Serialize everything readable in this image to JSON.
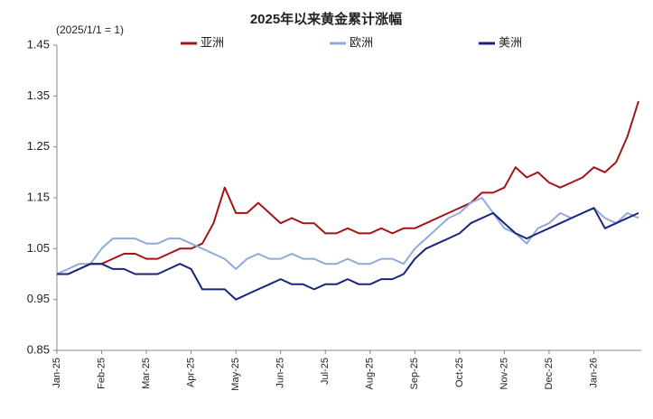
{
  "chart_data": {
    "type": "line",
    "title": "2025年以来黄金累计涨幅",
    "annotation": "(2025/1/1 = 1)",
    "categories": [
      "Jan-25",
      null,
      null,
      null,
      "Feb-25",
      null,
      null,
      null,
      "Mar-25",
      null,
      null,
      null,
      "Apr-25",
      null,
      null,
      null,
      "May-25",
      null,
      null,
      null,
      "Jun-25",
      null,
      null,
      null,
      "Jul-25",
      null,
      null,
      null,
      "Aug-25",
      null,
      null,
      null,
      "Sep-25",
      null,
      null,
      null,
      "Oct-25",
      null,
      null,
      null,
      "Nov-25",
      null,
      null,
      null,
      "Dec-25",
      null,
      null,
      null,
      "Jan-26",
      null,
      null,
      null,
      null
    ],
    "series": [
      {
        "name": "亚洲",
        "color": "#a31515",
        "values": [
          1.0,
          1.0,
          1.01,
          1.02,
          1.02,
          1.03,
          1.04,
          1.04,
          1.03,
          1.03,
          1.04,
          1.05,
          1.05,
          1.06,
          1.1,
          1.17,
          1.12,
          1.12,
          1.14,
          1.12,
          1.1,
          1.11,
          1.1,
          1.1,
          1.08,
          1.08,
          1.09,
          1.08,
          1.08,
          1.09,
          1.08,
          1.09,
          1.09,
          1.1,
          1.11,
          1.12,
          1.13,
          1.14,
          1.16,
          1.16,
          1.17,
          1.21,
          1.19,
          1.2,
          1.18,
          1.17,
          1.18,
          1.19,
          1.21,
          1.2,
          1.22,
          1.27,
          1.34
        ]
      },
      {
        "name": "欧洲",
        "color": "#8faadc",
        "values": [
          1.0,
          1.01,
          1.02,
          1.02,
          1.05,
          1.07,
          1.07,
          1.07,
          1.06,
          1.06,
          1.07,
          1.07,
          1.06,
          1.05,
          1.04,
          1.03,
          1.01,
          1.03,
          1.04,
          1.03,
          1.03,
          1.04,
          1.03,
          1.03,
          1.02,
          1.02,
          1.03,
          1.02,
          1.02,
          1.03,
          1.03,
          1.02,
          1.05,
          1.07,
          1.09,
          1.11,
          1.12,
          1.14,
          1.15,
          1.12,
          1.09,
          1.08,
          1.06,
          1.09,
          1.1,
          1.12,
          1.11,
          1.12,
          1.13,
          1.11,
          1.1,
          1.12,
          1.11
        ]
      },
      {
        "name": "美洲",
        "color": "#1a237e",
        "values": [
          1.0,
          1.0,
          1.01,
          1.02,
          1.02,
          1.01,
          1.01,
          1.0,
          1.0,
          1.0,
          1.01,
          1.02,
          1.01,
          0.97,
          0.97,
          0.97,
          0.95,
          0.96,
          0.97,
          0.98,
          0.99,
          0.98,
          0.98,
          0.97,
          0.98,
          0.98,
          0.99,
          0.98,
          0.98,
          0.99,
          0.99,
          1.0,
          1.03,
          1.05,
          1.06,
          1.07,
          1.08,
          1.1,
          1.11,
          1.12,
          1.1,
          1.08,
          1.07,
          1.08,
          1.09,
          1.1,
          1.11,
          1.12,
          1.13,
          1.09,
          1.1,
          1.11,
          1.12
        ]
      }
    ],
    "ylim": [
      0.85,
      1.45
    ],
    "yticks": [
      0.85,
      0.95,
      1.05,
      1.15,
      1.25,
      1.35,
      1.45
    ],
    "grid": false,
    "legend": "top"
  }
}
